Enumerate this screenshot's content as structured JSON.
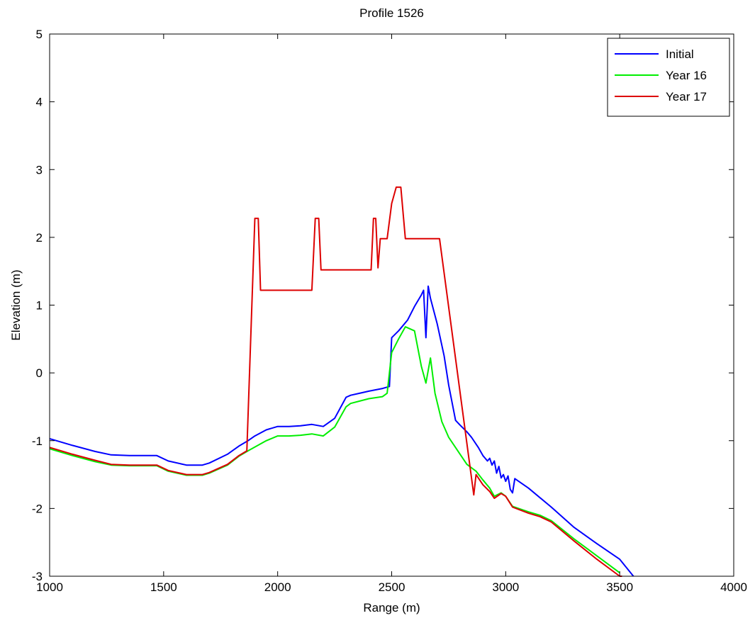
{
  "chart_data": {
    "type": "line",
    "title": "Profile  1526",
    "xlabel": "Range (m)",
    "ylabel": "Elevation (m)",
    "xlim": [
      1000,
      4000
    ],
    "ylim": [
      -3,
      5
    ],
    "xticks": [
      1000,
      1500,
      2000,
      2500,
      3000,
      3500,
      4000
    ],
    "yticks": [
      -3,
      -2,
      -1,
      0,
      1,
      2,
      3,
      4,
      5
    ],
    "grid": false,
    "legend_position": "top-right",
    "series": [
      {
        "name": "Initial",
        "color": "#0000ff",
        "x": [
          1000,
          1100,
          1200,
          1270,
          1350,
          1470,
          1520,
          1600,
          1670,
          1700,
          1780,
          1830,
          1870,
          1900,
          1950,
          2000,
          2050,
          2100,
          2150,
          2200,
          2250,
          2300,
          2320,
          2400,
          2460,
          2490,
          2500,
          2530,
          2550,
          2570,
          2600,
          2630,
          2640,
          2650,
          2660,
          2670,
          2700,
          2730,
          2750,
          2780,
          2800,
          2830,
          2850,
          2880,
          2900,
          2920,
          2930,
          2940,
          2950,
          2960,
          2970,
          2980,
          2990,
          3000,
          3010,
          3020,
          3030,
          3040,
          3100,
          3200,
          3300,
          3400,
          3500,
          3560
        ],
        "y": [
          -0.97,
          -1.07,
          -1.16,
          -1.21,
          -1.22,
          -1.22,
          -1.3,
          -1.36,
          -1.36,
          -1.33,
          -1.2,
          -1.08,
          -1.0,
          -0.93,
          -0.84,
          -0.79,
          -0.79,
          -0.78,
          -0.76,
          -0.79,
          -0.67,
          -0.36,
          -0.33,
          -0.27,
          -0.23,
          -0.2,
          0.52,
          0.62,
          0.7,
          0.78,
          0.98,
          1.15,
          1.22,
          0.52,
          1.28,
          1.1,
          0.72,
          0.25,
          -0.18,
          -0.7,
          -0.77,
          -0.87,
          -0.95,
          -1.1,
          -1.22,
          -1.3,
          -1.26,
          -1.36,
          -1.3,
          -1.48,
          -1.38,
          -1.55,
          -1.5,
          -1.6,
          -1.52,
          -1.72,
          -1.77,
          -1.56,
          -1.7,
          -1.98,
          -2.28,
          -2.52,
          -2.75,
          -3.0
        ]
      },
      {
        "name": "Year 16",
        "color": "#00ee00",
        "x": [
          1000,
          1100,
          1200,
          1270,
          1350,
          1470,
          1520,
          1600,
          1670,
          1700,
          1780,
          1830,
          1870,
          1950,
          2000,
          2050,
          2100,
          2150,
          2200,
          2250,
          2300,
          2320,
          2400,
          2460,
          2480,
          2500,
          2530,
          2560,
          2600,
          2630,
          2650,
          2670,
          2690,
          2720,
          2750,
          2800,
          2830,
          2870,
          2900,
          2930,
          2950,
          2980,
          3000,
          3030,
          3100,
          3150,
          3200,
          3300,
          3400,
          3500
        ],
        "y": [
          -1.12,
          -1.22,
          -1.31,
          -1.36,
          -1.37,
          -1.37,
          -1.45,
          -1.51,
          -1.51,
          -1.48,
          -1.36,
          -1.23,
          -1.15,
          -1.0,
          -0.93,
          -0.93,
          -0.92,
          -0.9,
          -0.93,
          -0.8,
          -0.5,
          -0.45,
          -0.38,
          -0.35,
          -0.3,
          0.3,
          0.5,
          0.68,
          0.62,
          0.1,
          -0.15,
          0.22,
          -0.3,
          -0.72,
          -0.95,
          -1.2,
          -1.35,
          -1.45,
          -1.58,
          -1.7,
          -1.82,
          -1.77,
          -1.82,
          -1.97,
          -2.05,
          -2.1,
          -2.18,
          -2.45,
          -2.7,
          -2.95
        ]
      },
      {
        "name": "Year 17",
        "color": "#dd0000",
        "x": [
          1000,
          1100,
          1200,
          1270,
          1350,
          1470,
          1520,
          1600,
          1670,
          1700,
          1780,
          1830,
          1865,
          1900,
          1915,
          1925,
          2150,
          2165,
          2180,
          2190,
          2410,
          2420,
          2430,
          2440,
          2450,
          2480,
          2500,
          2520,
          2540,
          2560,
          2700,
          2710,
          2860,
          2870,
          2880,
          2900,
          2930,
          2950,
          2980,
          3000,
          3030,
          3100,
          3150,
          3200,
          3300,
          3400,
          3500,
          3510
        ],
        "y": [
          -1.1,
          -1.2,
          -1.29,
          -1.35,
          -1.36,
          -1.36,
          -1.44,
          -1.5,
          -1.5,
          -1.47,
          -1.35,
          -1.22,
          -1.15,
          2.28,
          2.28,
          1.22,
          1.22,
          2.28,
          2.28,
          1.52,
          1.52,
          2.28,
          2.28,
          1.55,
          1.98,
          1.98,
          2.5,
          2.74,
          2.74,
          1.98,
          1.98,
          1.98,
          -1.8,
          -1.5,
          -1.55,
          -1.65,
          -1.75,
          -1.85,
          -1.78,
          -1.82,
          -1.98,
          -2.07,
          -2.12,
          -2.2,
          -2.48,
          -2.75,
          -3.0,
          -3.05
        ]
      }
    ]
  }
}
